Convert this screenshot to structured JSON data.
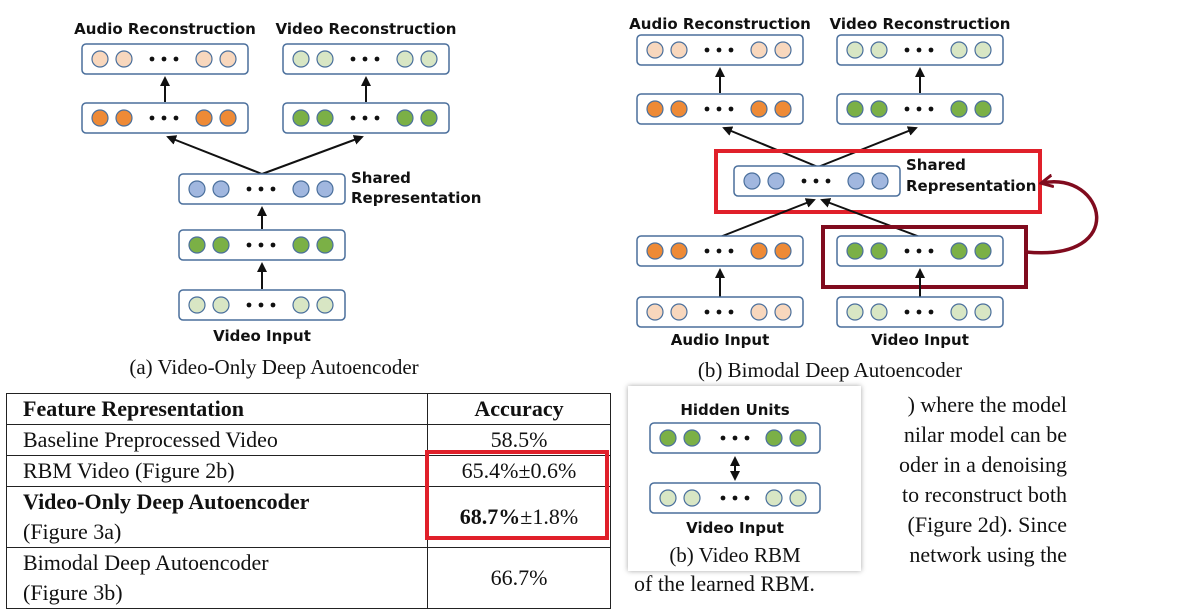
{
  "diagram_a": {
    "top_left_label": "Audio Reconstruction",
    "top_right_label": "Video Reconstruction",
    "shared_label_line1": "Shared",
    "shared_label_line2": "Representation",
    "input_label": "Video Input",
    "caption": "(a) Video-Only Deep Autoencoder"
  },
  "diagram_b": {
    "top_left_label": "Audio Reconstruction",
    "top_right_label": "Video Reconstruction",
    "shared_label_line1": "Shared",
    "shared_label_line2": "Representation",
    "audio_input_label": "Audio Input",
    "video_input_label": "Video Input",
    "caption": "(b) Bimodal Deep Autoencoder"
  },
  "table": {
    "header_feature": "Feature Representation",
    "header_accuracy": "Accuracy",
    "rows": [
      {
        "feature_line1": "Baseline Preprocessed Video",
        "feature_line2": "",
        "acc_bold": "",
        "acc_rest": "58.5%"
      },
      {
        "feature_line1": "RBM Video (Figure 2b)",
        "feature_line2": "",
        "acc_bold": "",
        "acc_rest": "65.4%±0.6%"
      },
      {
        "feature_line1": "Video-Only Deep Autoencoder",
        "feature_line2": "(Figure 3a)",
        "acc_bold": "68.7%",
        "acc_rest": "±1.8%"
      },
      {
        "feature_line1": "Bimodal Deep Autoencoder",
        "feature_line2": "(Figure 3b)",
        "acc_bold": "",
        "acc_rest": "66.7%"
      }
    ]
  },
  "rbm_inset": {
    "hidden_label": "Hidden Units",
    "input_label": "Video Input",
    "caption": "(b) Video RBM"
  },
  "body_text": {
    "line1": ") where the model",
    "line2": "nilar model can be",
    "line3": "oder in a denoising",
    "line4": "to reconstruct both",
    "line5": "(Figure 2d). Since",
    "line6": "network using the",
    "line7": "of the learned RBM."
  },
  "colors": {
    "audio_light": "#f8d7bd",
    "audio_dark": "#ee8a36",
    "video_light": "#d8e6c4",
    "video_dark": "#7bb046",
    "shared": "#a1b7df",
    "highlight_red": "#e0202a",
    "loop_maroon": "#800b1e"
  }
}
